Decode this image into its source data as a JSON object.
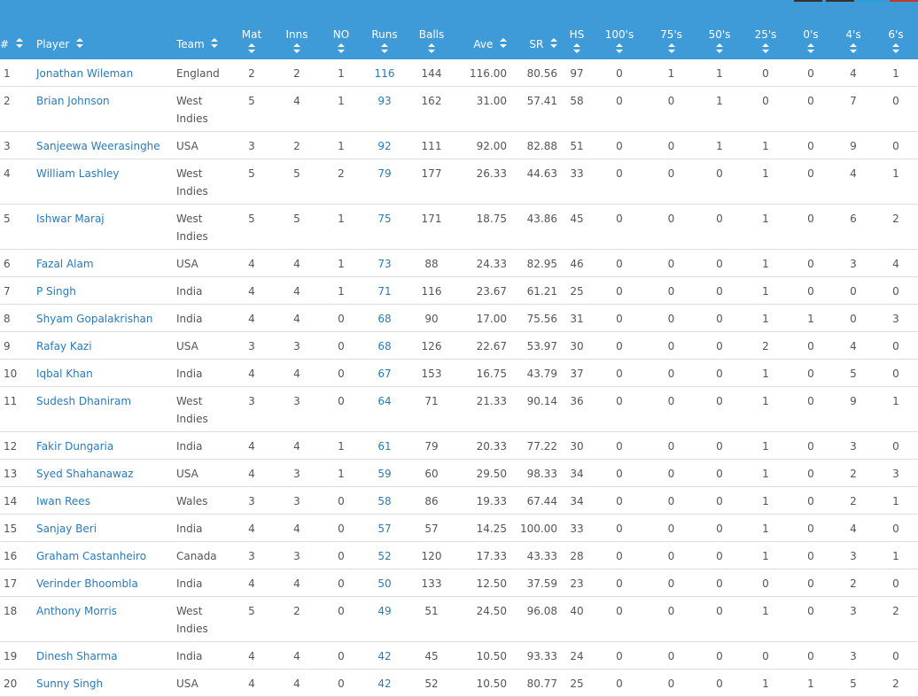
{
  "table": {
    "headers": [
      "#",
      "Player",
      "Team",
      "Mat",
      "Inns",
      "NO",
      "Runs",
      "Balls",
      "Ave",
      "SR",
      "HS",
      "100's",
      "75's",
      "50's",
      "25's",
      "0's",
      "4's",
      "6's"
    ],
    "rows": [
      [
        "1",
        "Jonathan Wileman",
        "England",
        "2",
        "2",
        "1",
        "116",
        "144",
        "116.00",
        "80.56",
        "97",
        "0",
        "1",
        "1",
        "0",
        "0",
        "4",
        "1"
      ],
      [
        "2",
        "Brian Johnson",
        "West Indies",
        "5",
        "4",
        "1",
        "93",
        "162",
        "31.00",
        "57.41",
        "58",
        "0",
        "0",
        "1",
        "0",
        "0",
        "7",
        "0"
      ],
      [
        "3",
        "Sanjeewa Weerasinghe",
        "USA",
        "3",
        "2",
        "1",
        "92",
        "111",
        "92.00",
        "82.88",
        "51",
        "0",
        "0",
        "1",
        "1",
        "0",
        "9",
        "0"
      ],
      [
        "4",
        "William Lashley",
        "West Indies",
        "5",
        "5",
        "2",
        "79",
        "177",
        "26.33",
        "44.63",
        "33",
        "0",
        "0",
        "0",
        "1",
        "0",
        "4",
        "1"
      ],
      [
        "5",
        "Ishwar Maraj",
        "West Indies",
        "5",
        "5",
        "1",
        "75",
        "171",
        "18.75",
        "43.86",
        "45",
        "0",
        "0",
        "0",
        "1",
        "0",
        "6",
        "2"
      ],
      [
        "6",
        "Fazal Alam",
        "USA",
        "4",
        "4",
        "1",
        "73",
        "88",
        "24.33",
        "82.95",
        "46",
        "0",
        "0",
        "0",
        "1",
        "0",
        "3",
        "4"
      ],
      [
        "7",
        "P Singh",
        "India",
        "4",
        "4",
        "1",
        "71",
        "116",
        "23.67",
        "61.21",
        "25",
        "0",
        "0",
        "0",
        "1",
        "0",
        "0",
        "0"
      ],
      [
        "8",
        "Shyam Gopalakrishan",
        "India",
        "4",
        "4",
        "0",
        "68",
        "90",
        "17.00",
        "75.56",
        "31",
        "0",
        "0",
        "0",
        "1",
        "1",
        "0",
        "3"
      ],
      [
        "9",
        "Rafay Kazi",
        "USA",
        "3",
        "3",
        "0",
        "68",
        "126",
        "22.67",
        "53.97",
        "30",
        "0",
        "0",
        "0",
        "2",
        "0",
        "4",
        "0"
      ],
      [
        "10",
        "Iqbal Khan",
        "India",
        "4",
        "4",
        "0",
        "67",
        "153",
        "16.75",
        "43.79",
        "37",
        "0",
        "0",
        "0",
        "1",
        "0",
        "5",
        "0"
      ],
      [
        "11",
        "Sudesh Dhaniram",
        "West Indies",
        "3",
        "3",
        "0",
        "64",
        "71",
        "21.33",
        "90.14",
        "36",
        "0",
        "0",
        "0",
        "1",
        "0",
        "9",
        "1"
      ],
      [
        "12",
        "Fakir Dungaria",
        "India",
        "4",
        "4",
        "1",
        "61",
        "79",
        "20.33",
        "77.22",
        "30",
        "0",
        "0",
        "0",
        "1",
        "0",
        "3",
        "0"
      ],
      [
        "13",
        "Syed Shahanawaz",
        "USA",
        "4",
        "3",
        "1",
        "59",
        "60",
        "29.50",
        "98.33",
        "34",
        "0",
        "0",
        "0",
        "1",
        "0",
        "2",
        "3"
      ],
      [
        "14",
        "Iwan Rees",
        "Wales",
        "3",
        "3",
        "0",
        "58",
        "86",
        "19.33",
        "67.44",
        "34",
        "0",
        "0",
        "0",
        "1",
        "0",
        "2",
        "1"
      ],
      [
        "15",
        "Sanjay Beri",
        "India",
        "4",
        "4",
        "0",
        "57",
        "57",
        "14.25",
        "100.00",
        "33",
        "0",
        "0",
        "0",
        "1",
        "0",
        "4",
        "0"
      ],
      [
        "16",
        "Graham Castanheiro",
        "Canada",
        "3",
        "3",
        "0",
        "52",
        "120",
        "17.33",
        "43.33",
        "28",
        "0",
        "0",
        "0",
        "1",
        "0",
        "3",
        "1"
      ],
      [
        "17",
        "Verinder Bhoombla",
        "India",
        "4",
        "4",
        "0",
        "50",
        "133",
        "12.50",
        "37.59",
        "23",
        "0",
        "0",
        "0",
        "0",
        "0",
        "2",
        "0"
      ],
      [
        "18",
        "Anthony Morris",
        "West Indies",
        "5",
        "2",
        "0",
        "49",
        "51",
        "24.50",
        "96.08",
        "40",
        "0",
        "0",
        "0",
        "1",
        "0",
        "3",
        "2"
      ],
      [
        "19",
        "Dinesh Sharma",
        "India",
        "4",
        "4",
        "0",
        "42",
        "45",
        "10.50",
        "93.33",
        "24",
        "0",
        "0",
        "0",
        "0",
        "0",
        "3",
        "0"
      ],
      [
        "20",
        "Sunny Singh",
        "USA",
        "4",
        "4",
        "0",
        "42",
        "52",
        "10.50",
        "80.77",
        "25",
        "0",
        "0",
        "0",
        "1",
        "1",
        "5",
        "2"
      ]
    ]
  }
}
